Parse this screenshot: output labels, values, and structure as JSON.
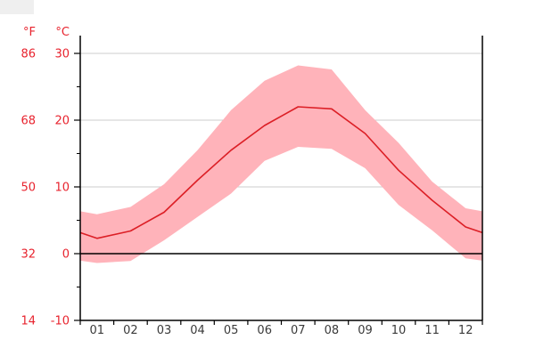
{
  "page": {
    "background": "#ffffff"
  },
  "colors": {
    "label_red": "#e8232e",
    "line_red": "#dc1f26",
    "band_pink": "#ffb3ba",
    "grid_gray": "#cccccc",
    "axis_black": "#000000",
    "zero_line_black": "#000000",
    "month_label_gray": "#3a3a3a",
    "corner_artifact_gray": "#efefef"
  },
  "chart_data": {
    "type": "line",
    "description": "Monthly climate temperature chart: red mean-temperature line with pink min-max band, dual Fahrenheit/Celsius axis, black zero-degree line",
    "x_categories": [
      "01",
      "02",
      "03",
      "04",
      "05",
      "06",
      "07",
      "08",
      "09",
      "10",
      "11",
      "12"
    ],
    "y_axis_fahrenheit": {
      "header": "°F",
      "ticks": [
        86,
        68,
        50,
        32,
        14
      ]
    },
    "y_axis_celsius": {
      "header": "°C",
      "ticks": [
        30,
        20,
        10,
        0,
        -10
      ]
    },
    "y_minor_ticks_celsius": [
      25,
      15,
      5,
      -5
    ],
    "ylim_celsius": [
      -10,
      32.6
    ],
    "grid": "horizontal gray gridlines at 10, 20, 30 °C; solid black line at 0 °C; no vertical gridlines",
    "legend": "none",
    "title": "",
    "xlabel": "",
    "ylabel": "",
    "series": [
      {
        "name": "mean_temperature_c",
        "values": [
          2.3,
          3.4,
          6.2,
          11.0,
          15.5,
          19.2,
          22.0,
          21.7,
          18.0,
          12.5,
          8.0,
          4.0
        ]
      },
      {
        "name": "max_temperature_band_c",
        "values": [
          5.9,
          7.0,
          10.4,
          15.5,
          21.5,
          25.9,
          28.2,
          27.6,
          21.5,
          16.6,
          10.8,
          6.8
        ]
      },
      {
        "name": "min_temperature_band_c",
        "values": [
          -1.4,
          -1.1,
          2.0,
          5.5,
          9.0,
          13.9,
          16.0,
          15.7,
          12.8,
          7.3,
          3.5,
          -0.7
        ]
      }
    ]
  }
}
